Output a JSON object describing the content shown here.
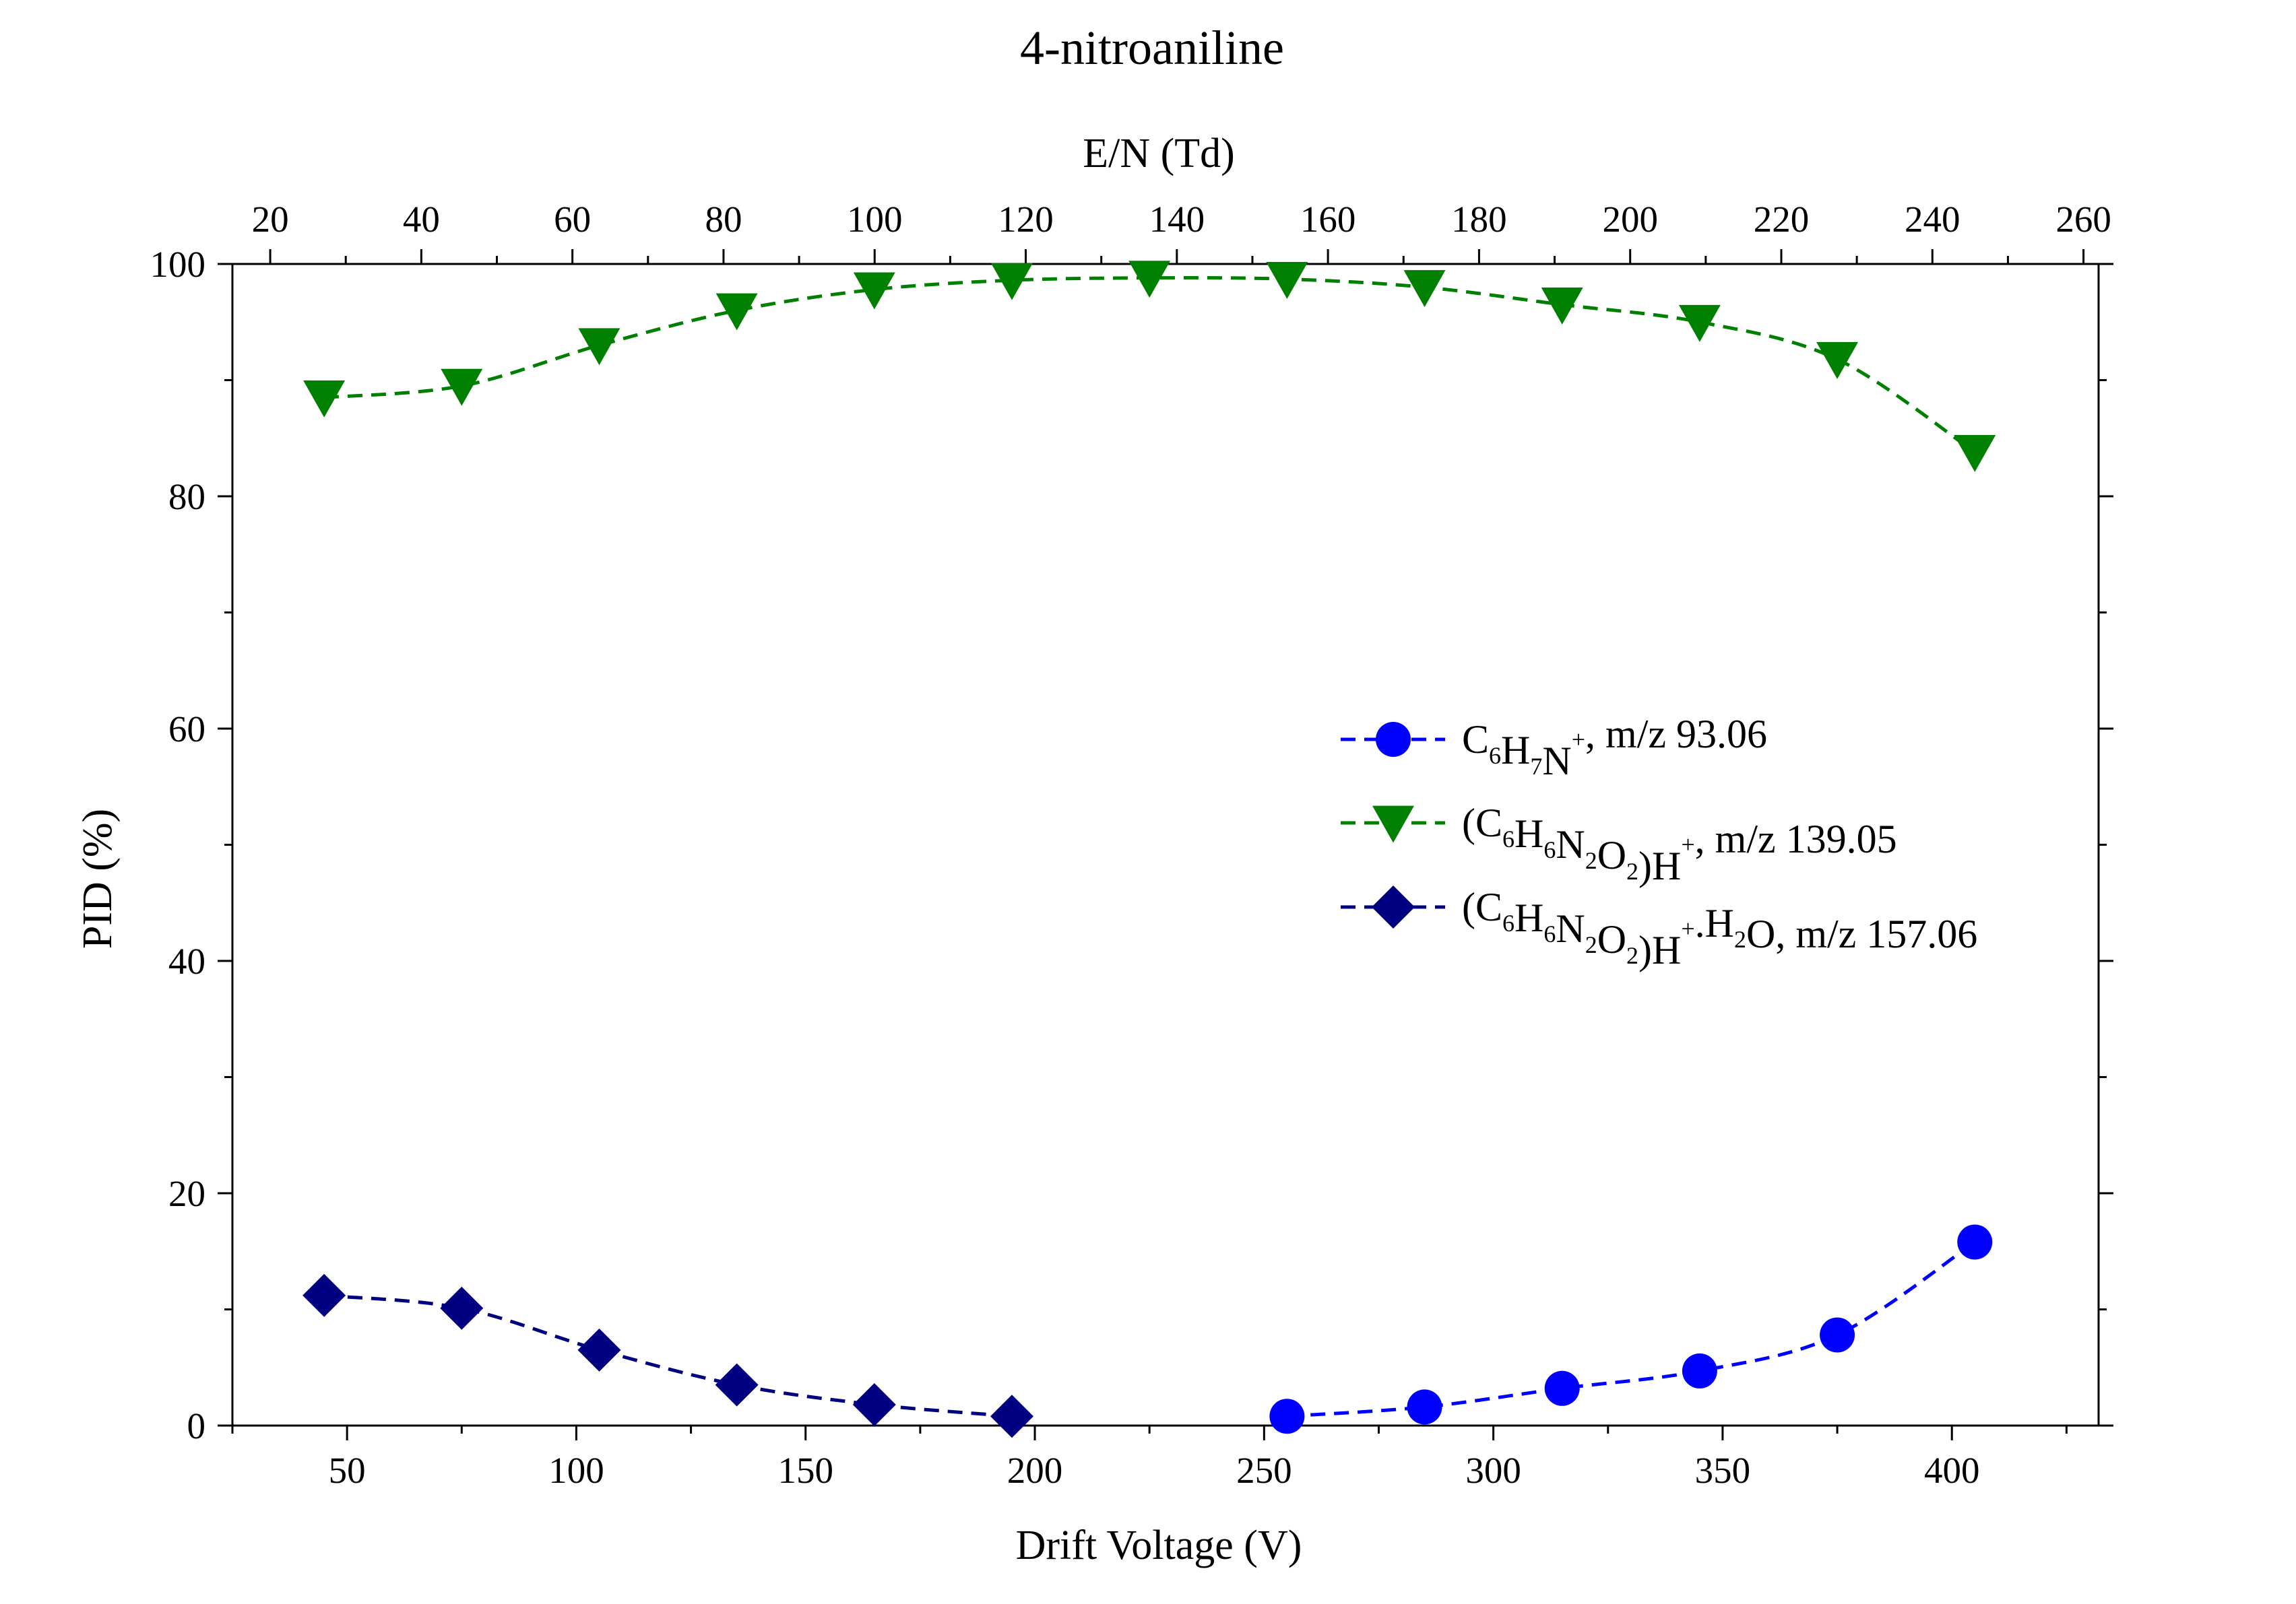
{
  "chart_data": {
    "type": "scatter",
    "title": "4-nitroaniline",
    "xlabel": "Drift Voltage (V)",
    "ylabel": "PID (%)",
    "x2label": "E/N (Td)",
    "xlim": [
      25,
      432
    ],
    "ylim": [
      0,
      100
    ],
    "x2lim": [
      15,
      262
    ],
    "x_ticks": [
      50,
      100,
      150,
      200,
      250,
      300,
      350,
      400
    ],
    "x_ticks_minor": [
      25,
      75,
      125,
      175,
      225,
      275,
      325,
      375,
      425
    ],
    "y_ticks": [
      0,
      20,
      40,
      60,
      80,
      100
    ],
    "y_ticks_minor": [
      10,
      30,
      50,
      70,
      90
    ],
    "x2_ticks": [
      20,
      40,
      60,
      80,
      100,
      120,
      140,
      160,
      180,
      200,
      220,
      240,
      260
    ],
    "x2_ticks_minor": [
      30,
      50,
      70,
      90,
      110,
      130,
      150,
      170,
      190,
      210,
      230,
      250
    ],
    "grid": false,
    "legend_position": "center-right",
    "series": [
      {
        "name": "C6H7N+, m/z 93.06",
        "label_parts": [
          [
            "C",
            ""
          ],
          [
            "6",
            "sub"
          ],
          [
            "H",
            ""
          ],
          [
            "7",
            "sub"
          ],
          [
            "N",
            ""
          ],
          [
            "+",
            "sup"
          ],
          [
            ", m/z 93.06",
            ""
          ]
        ],
        "marker": "circle",
        "color": "#0000ff",
        "x": [
          255,
          285,
          315,
          345,
          375,
          405
        ],
        "y": [
          0.8,
          1.6,
          3.2,
          4.7,
          7.8,
          15.8
        ]
      },
      {
        "name": "(C6H6N2O2)H+, m/z 139.05",
        "label_parts": [
          [
            "(C",
            ""
          ],
          [
            "6",
            "sub"
          ],
          [
            "H",
            ""
          ],
          [
            "6",
            "sub"
          ],
          [
            "N",
            ""
          ],
          [
            "2",
            "sub"
          ],
          [
            "O",
            ""
          ],
          [
            "2",
            "sub"
          ],
          [
            ")H",
            ""
          ],
          [
            "+",
            "sup"
          ],
          [
            ", m/z 139.05",
            ""
          ]
        ],
        "marker": "triangle-down",
        "color": "#008000",
        "x": [
          45,
          75,
          105,
          135,
          165,
          195,
          225,
          255,
          285,
          315,
          345,
          375,
          405
        ],
        "y": [
          88.5,
          89.5,
          93.0,
          96.0,
          97.8,
          98.6,
          98.8,
          98.7,
          98.0,
          96.5,
          95.0,
          91.8,
          83.8
        ]
      },
      {
        "name": "(C6H6N2O2)H+.H2O, m/z 157.06",
        "label_parts": [
          [
            "(C",
            ""
          ],
          [
            "6",
            "sub"
          ],
          [
            "H",
            ""
          ],
          [
            "6",
            "sub"
          ],
          [
            "N",
            ""
          ],
          [
            "2",
            "sub"
          ],
          [
            "O",
            ""
          ],
          [
            "2",
            "sub"
          ],
          [
            ")H",
            ""
          ],
          [
            "+",
            "sup"
          ],
          [
            ".H",
            ""
          ],
          [
            "2",
            "sub"
          ],
          [
            "O, m/z 157.06",
            ""
          ]
        ],
        "marker": "diamond",
        "color": "#000080",
        "x": [
          45,
          75,
          105,
          135,
          165,
          195
        ],
        "y": [
          11.2,
          10.1,
          6.5,
          3.5,
          1.8,
          0.8
        ]
      }
    ]
  }
}
